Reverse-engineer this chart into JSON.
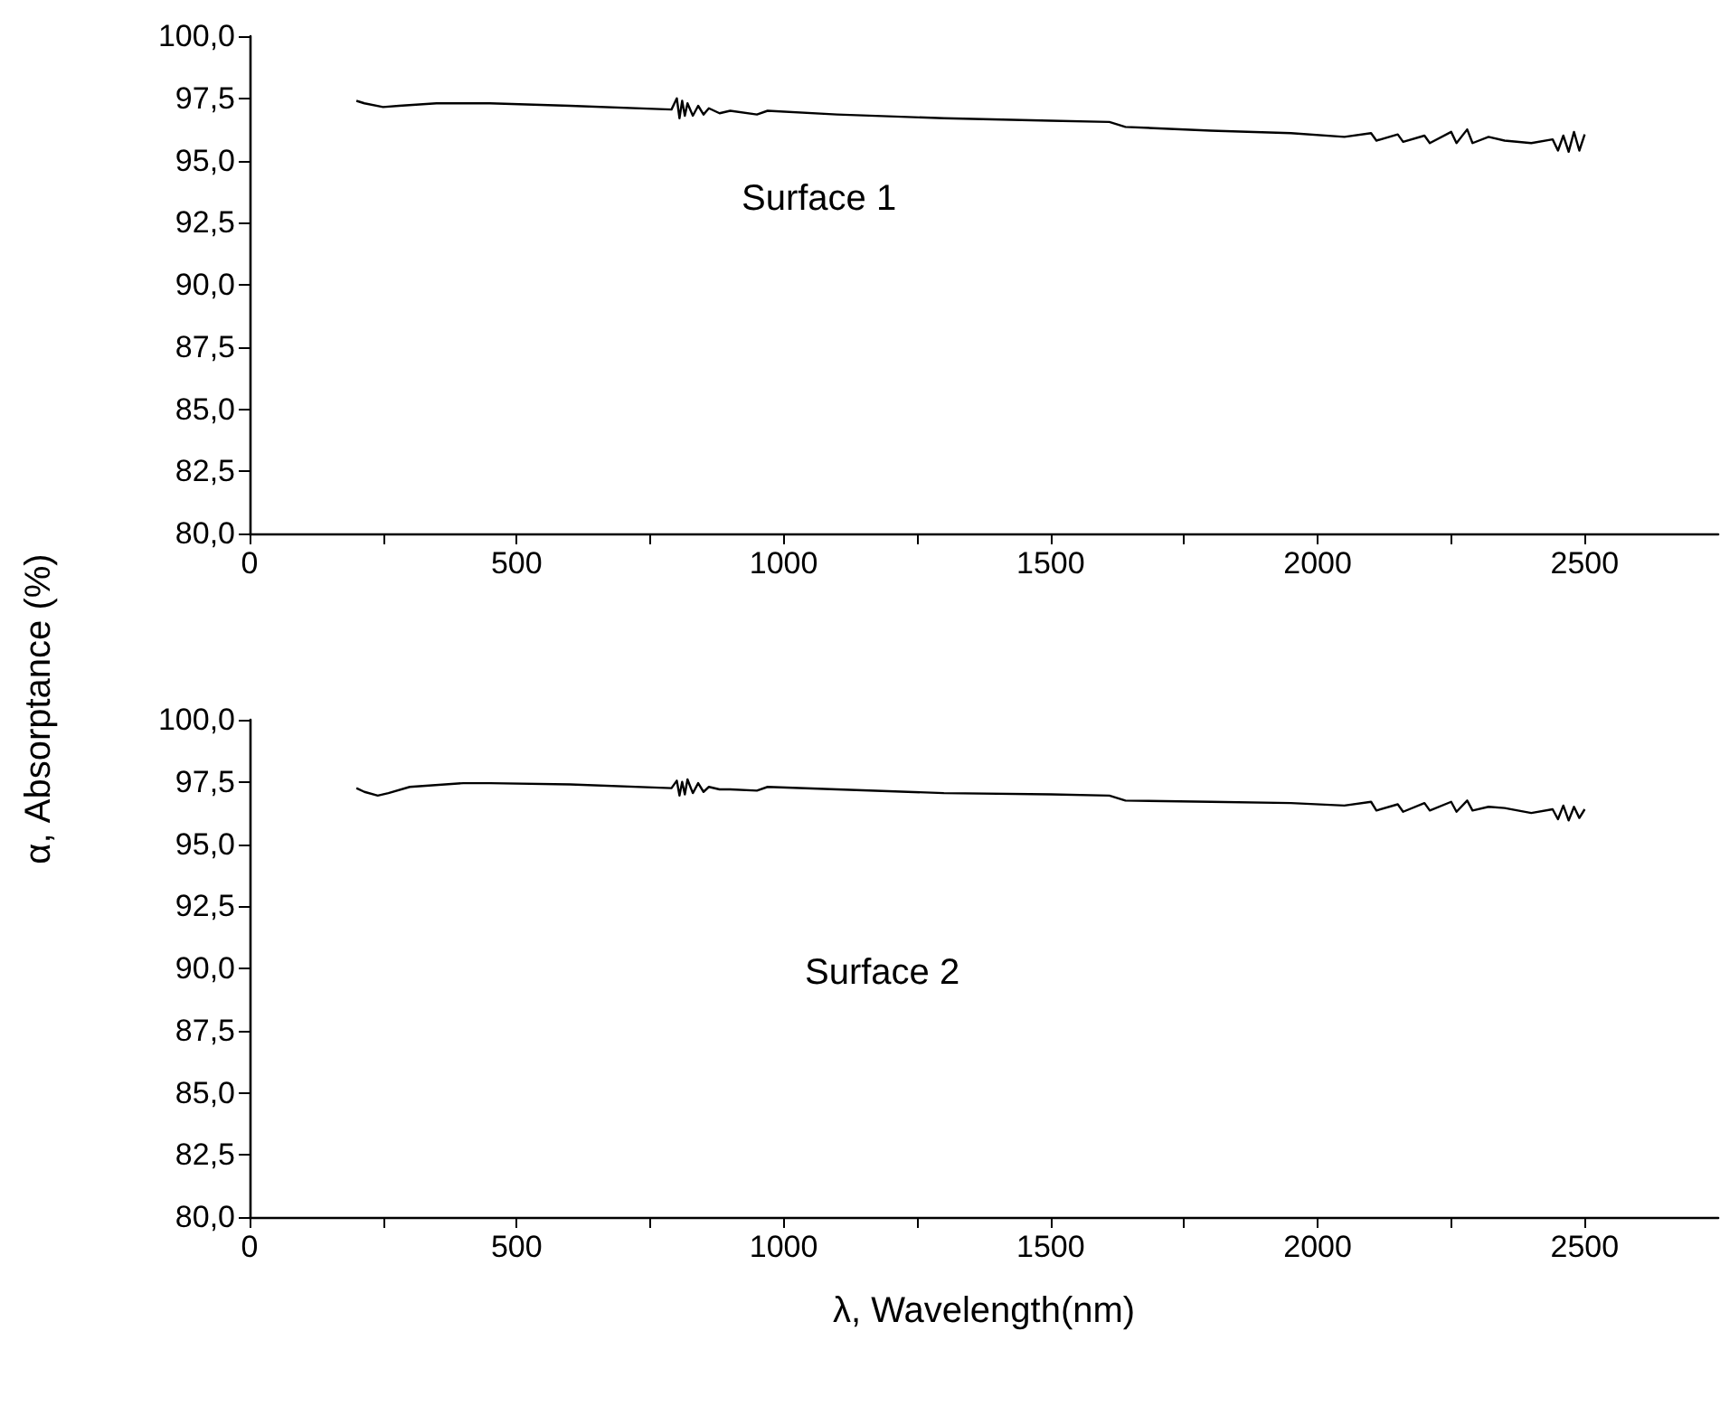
{
  "chart_data": [
    {
      "type": "line",
      "ylabel": "α, Absorptance (%)",
      "annotations": [
        "Surface 1"
      ],
      "grid": false,
      "marker": "none",
      "line_style": "solid",
      "xlim": [
        0,
        2750
      ],
      "xticks": [
        0,
        {
          "value": 250,
          "label": null
        },
        500,
        {
          "value": 750,
          "label": null
        },
        1000,
        {
          "value": 1250,
          "label": null
        },
        1500,
        {
          "value": 1750,
          "label": null
        },
        2000,
        {
          "value": 2250,
          "label": null
        },
        2500
      ],
      "ylim": [
        80,
        100
      ],
      "yticks": [
        {
          "value": 80,
          "label": "80,0"
        },
        {
          "value": 82.5,
          "label": "82,5"
        },
        {
          "value": 85,
          "label": "85,0"
        },
        {
          "value": 87.5,
          "label": "87,5"
        },
        {
          "value": 90,
          "label": "90,0"
        },
        {
          "value": 92.5,
          "label": "92,5"
        },
        {
          "value": 95,
          "label": "95,0"
        },
        {
          "value": 97.5,
          "label": "97,5"
        },
        {
          "value": 100,
          "label": "100,0"
        }
      ],
      "series": [
        {
          "color": "#000000",
          "x": [
            200,
            215,
            250,
            280,
            350,
            450,
            600,
            790,
            800,
            805,
            810,
            815,
            820,
            830,
            840,
            850,
            860,
            880,
            900,
            950,
            970,
            1100,
            1300,
            1500,
            1610,
            1640,
            1800,
            1950,
            2050,
            2100,
            2110,
            2150,
            2160,
            2200,
            2210,
            2250,
            2260,
            2280,
            2290,
            2320,
            2350,
            2400,
            2440,
            2450,
            2460,
            2470,
            2480,
            2490,
            2500
          ],
          "values": [
            97.4,
            97.3,
            97.15,
            97.2,
            97.3,
            97.3,
            97.2,
            97.05,
            97.5,
            96.7,
            97.4,
            96.8,
            97.3,
            96.8,
            97.2,
            96.85,
            97.1,
            96.9,
            97.0,
            96.85,
            97.0,
            96.85,
            96.7,
            96.6,
            96.55,
            96.35,
            96.2,
            96.1,
            95.95,
            96.1,
            95.8,
            96.05,
            95.75,
            96.0,
            95.7,
            96.15,
            95.7,
            96.25,
            95.7,
            95.95,
            95.8,
            95.7,
            95.85,
            95.4,
            96.0,
            95.35,
            96.15,
            95.4,
            96.05
          ]
        }
      ]
    },
    {
      "type": "line",
      "xlabel": "λ, Wavelength(nm)",
      "annotations": [
        "Surface 2"
      ],
      "grid": false,
      "marker": "none",
      "line_style": "solid",
      "xlim": [
        0,
        2750
      ],
      "xticks": [
        0,
        {
          "value": 250,
          "label": null
        },
        500,
        {
          "value": 750,
          "label": null
        },
        1000,
        {
          "value": 1250,
          "label": null
        },
        1500,
        {
          "value": 1750,
          "label": null
        },
        2000,
        {
          "value": 2250,
          "label": null
        },
        2500
      ],
      "ylim": [
        80,
        100
      ],
      "yticks": [
        {
          "value": 80,
          "label": "80,0"
        },
        {
          "value": 82.5,
          "label": "82,5"
        },
        {
          "value": 85,
          "label": "85,0"
        },
        {
          "value": 87.5,
          "label": "87,5"
        },
        {
          "value": 90,
          "label": "90,0"
        },
        {
          "value": 92.5,
          "label": "92,5"
        },
        {
          "value": 95,
          "label": "95,0"
        },
        {
          "value": 97.5,
          "label": "97,5"
        },
        {
          "value": 100,
          "label": "100,0"
        }
      ],
      "series": [
        {
          "color": "#000000",
          "x": [
            200,
            215,
            240,
            260,
            300,
            400,
            450,
            600,
            790,
            800,
            805,
            810,
            815,
            820,
            830,
            840,
            850,
            860,
            880,
            900,
            950,
            970,
            1100,
            1300,
            1500,
            1610,
            1640,
            1800,
            1950,
            2050,
            2100,
            2110,
            2150,
            2160,
            2200,
            2210,
            2250,
            2260,
            2280,
            2290,
            2320,
            2350,
            2400,
            2440,
            2450,
            2460,
            2470,
            2480,
            2490,
            2500
          ],
          "values": [
            97.25,
            97.1,
            96.95,
            97.05,
            97.3,
            97.45,
            97.45,
            97.4,
            97.25,
            97.55,
            96.95,
            97.5,
            97.0,
            97.6,
            97.05,
            97.45,
            97.1,
            97.3,
            97.2,
            97.2,
            97.15,
            97.3,
            97.2,
            97.05,
            97.0,
            96.95,
            96.75,
            96.7,
            96.65,
            96.55,
            96.7,
            96.35,
            96.6,
            96.3,
            96.65,
            96.35,
            96.7,
            96.3,
            96.75,
            96.35,
            96.5,
            96.45,
            96.25,
            96.4,
            96.0,
            96.55,
            95.95,
            96.5,
            96.05,
            96.4
          ]
        }
      ]
    }
  ]
}
